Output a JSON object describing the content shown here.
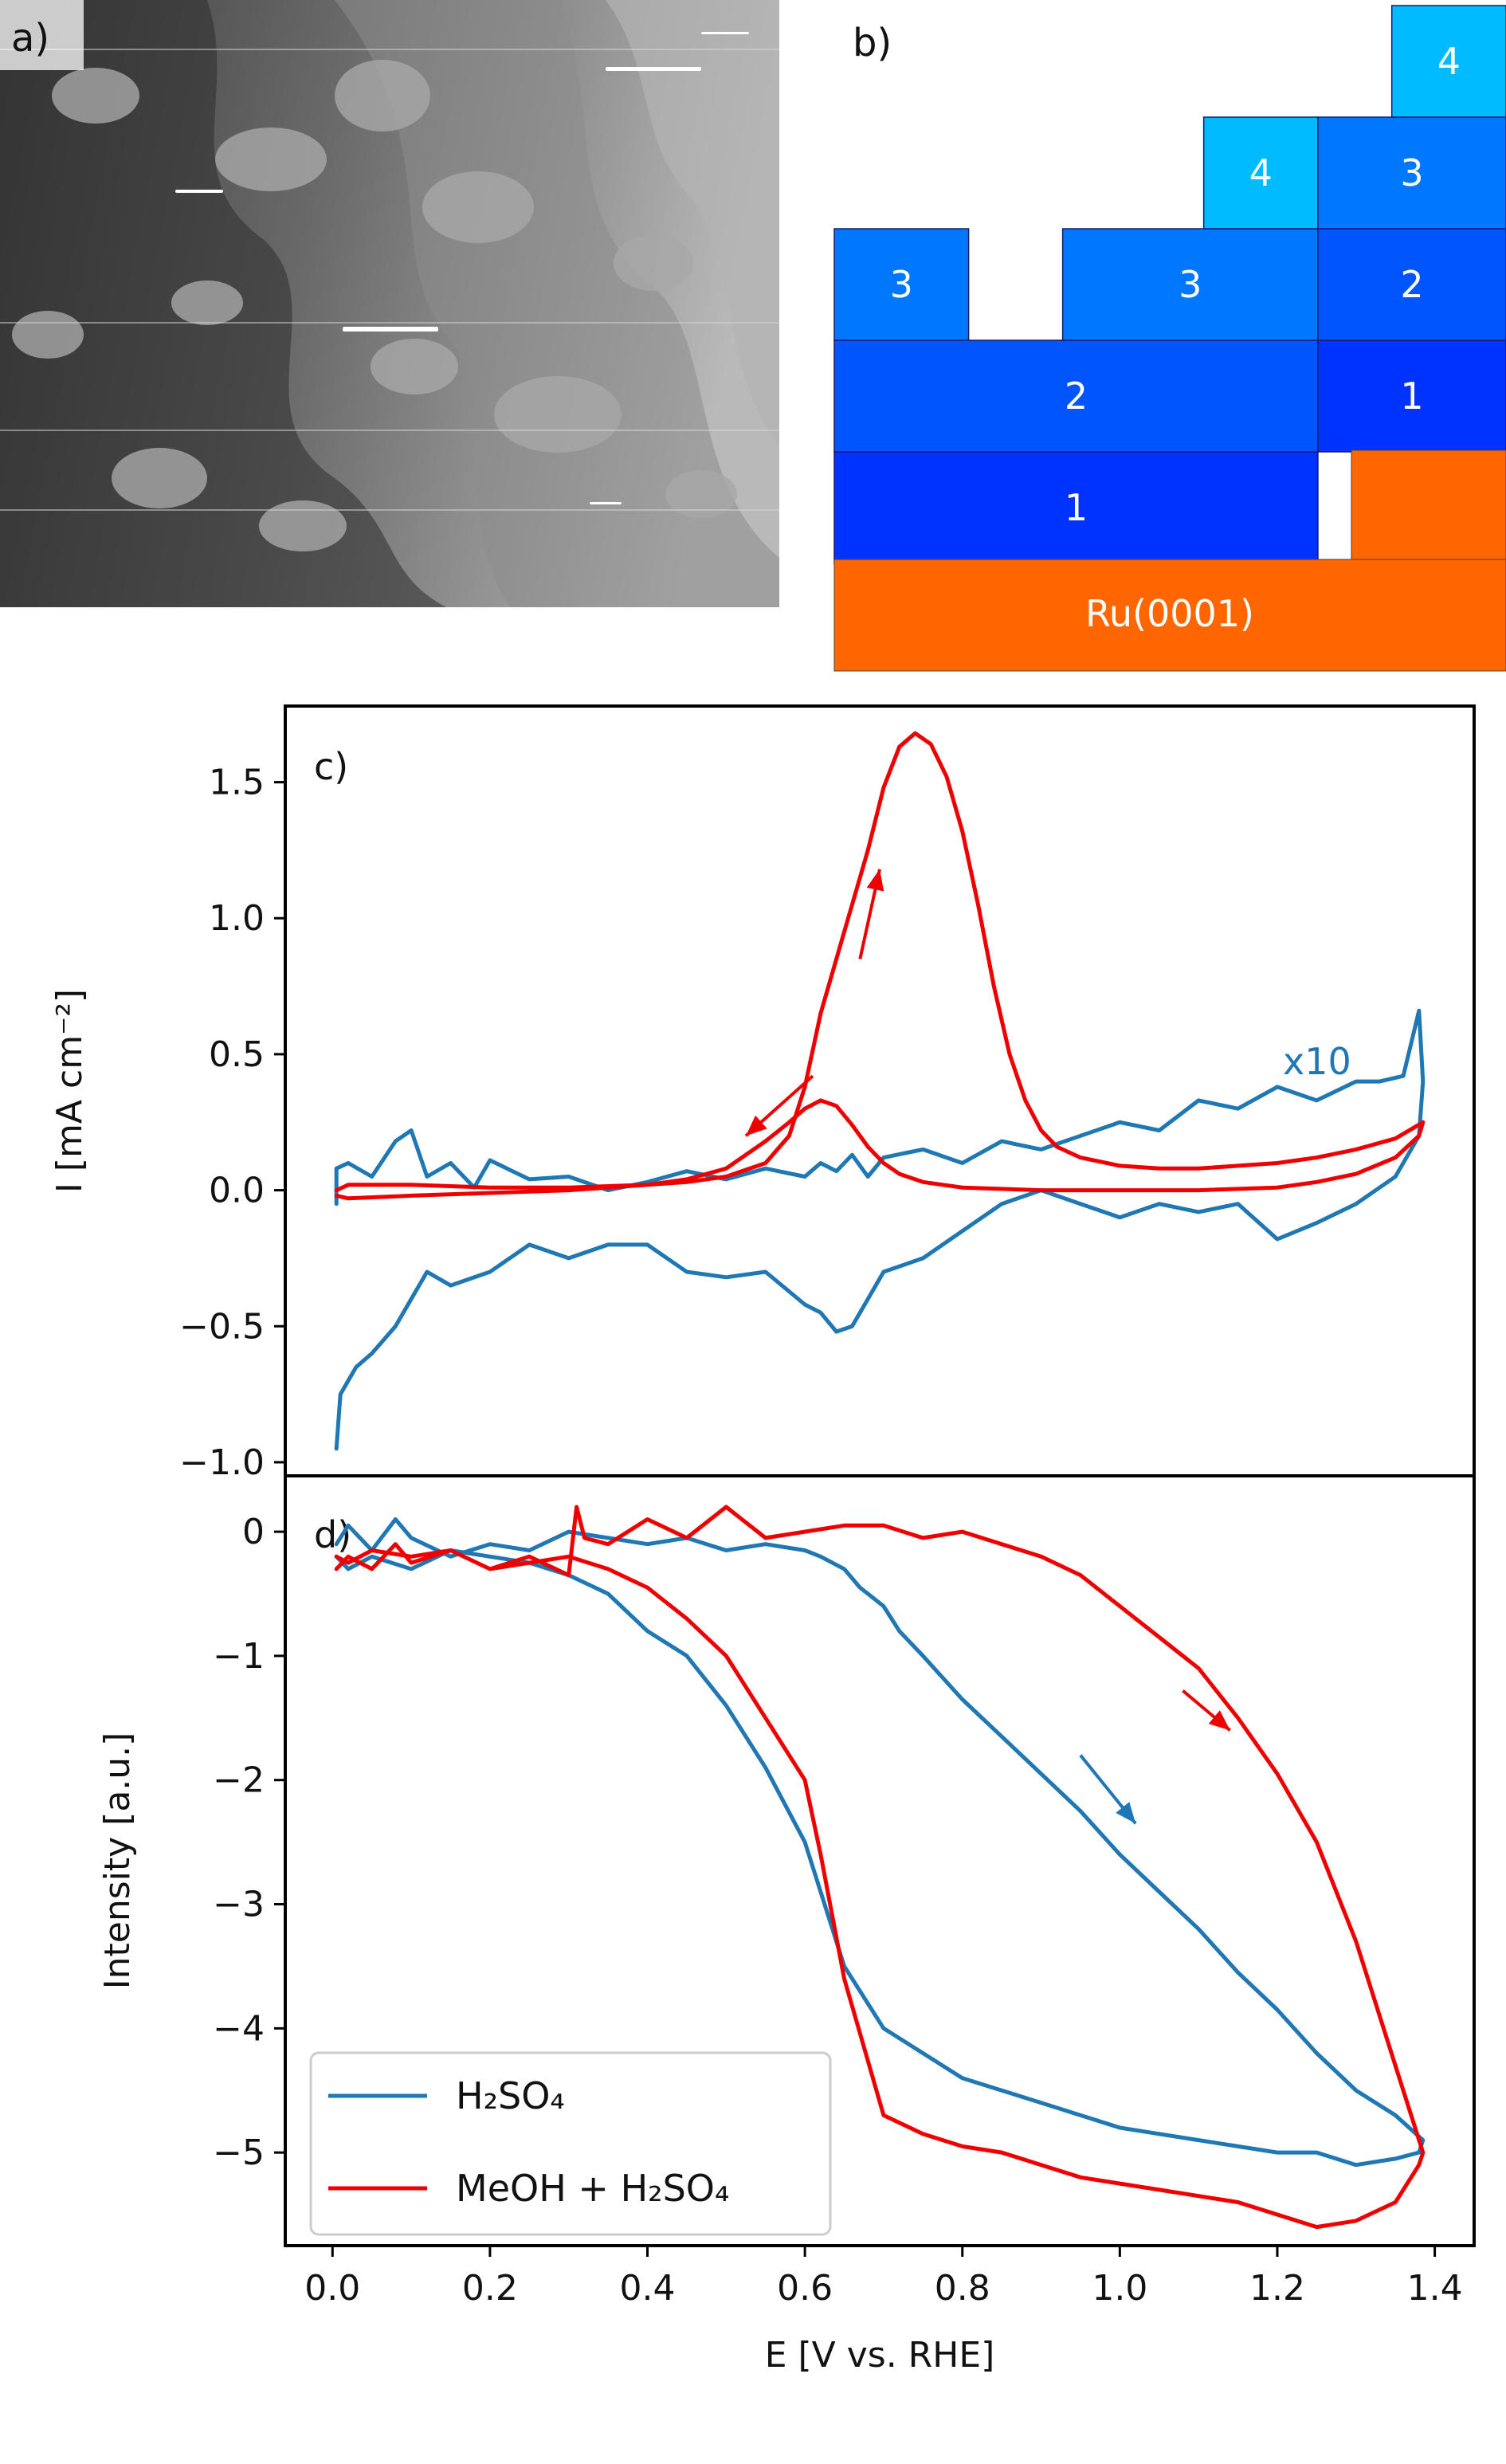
{
  "panel_a": {
    "label": "a)"
  },
  "panel_b": {
    "label": "b)",
    "substrate_label": "Ru(0001)",
    "colors": {
      "ru": "#ff6600",
      "layer1": "#0033ff",
      "layer2": "#0055ff",
      "layer3": "#0077ff",
      "layer4": "#00bbff"
    },
    "blocks": [
      {
        "layer": 1,
        "label": "1",
        "x0": 0.0,
        "x1": 0.72,
        "row": 1
      },
      {
        "layer": 2,
        "label": "2",
        "x0": 0.0,
        "x1": 0.72,
        "row": 2
      },
      {
        "layer": 3,
        "label": "3",
        "x0": 0.0,
        "x1": 0.2,
        "row": 3
      },
      {
        "layer": 3,
        "label": "3",
        "x0": 0.34,
        "x1": 0.72,
        "row": 3
      },
      {
        "layer": 4,
        "label": "4",
        "x0": 0.55,
        "x1": 0.72,
        "row": 4
      },
      {
        "layer": 1,
        "label": "1",
        "x0": 0.72,
        "x1": 1.0,
        "row": 2
      },
      {
        "layer": 2,
        "label": "2",
        "x0": 0.72,
        "x1": 1.0,
        "row": 3
      },
      {
        "layer": 3,
        "label": "3",
        "x0": 0.72,
        "x1": 1.0,
        "row": 4
      },
      {
        "layer": 4,
        "label": "4",
        "x0": 0.83,
        "x1": 1.0,
        "row": 5
      }
    ]
  },
  "chart_data": [
    {
      "panel_label": "c)",
      "type": "line",
      "title": "",
      "xlabel": "",
      "ylabel": "I [mA cm⁻²]",
      "xlim": [
        -0.06,
        1.45
      ],
      "ylim": [
        -1.05,
        1.78
      ],
      "yticks": [
        -1.0,
        -0.5,
        0.0,
        0.5,
        1.0,
        1.5
      ],
      "ytick_labels": [
        "−1.0",
        "−0.5",
        "0.0",
        "0.5",
        "1.0",
        "1.5"
      ],
      "annotation": "x10",
      "series": [
        {
          "key": "h2so4",
          "color": "#1f77b4",
          "x": [
            0.005,
            0.005,
            0.02,
            0.05,
            0.08,
            0.1,
            0.12,
            0.15,
            0.18,
            0.2,
            0.25,
            0.3,
            0.35,
            0.4,
            0.45,
            0.5,
            0.55,
            0.6,
            0.62,
            0.64,
            0.66,
            0.68,
            0.7,
            0.75,
            0.8,
            0.85,
            0.9,
            0.95,
            1.0,
            1.05,
            1.1,
            1.15,
            1.2,
            1.25,
            1.3,
            1.33,
            1.36,
            1.38,
            1.385,
            1.38,
            1.35,
            1.3,
            1.25,
            1.2,
            1.15,
            1.1,
            1.05,
            1.0,
            0.95,
            0.9,
            0.85,
            0.8,
            0.75,
            0.7,
            0.68,
            0.66,
            0.64,
            0.62,
            0.6,
            0.55,
            0.5,
            0.45,
            0.4,
            0.35,
            0.3,
            0.25,
            0.2,
            0.15,
            0.12,
            0.1,
            0.08,
            0.05,
            0.03,
            0.01,
            0.005
          ],
          "y": [
            -0.05,
            0.08,
            0.1,
            0.05,
            0.18,
            0.22,
            0.05,
            0.1,
            0.01,
            0.11,
            0.04,
            0.05,
            0.0,
            0.03,
            0.07,
            0.04,
            0.08,
            0.05,
            0.1,
            0.07,
            0.13,
            0.05,
            0.12,
            0.15,
            0.1,
            0.18,
            0.15,
            0.2,
            0.25,
            0.22,
            0.33,
            0.3,
            0.38,
            0.33,
            0.4,
            0.4,
            0.42,
            0.66,
            0.4,
            0.2,
            0.05,
            -0.05,
            -0.12,
            -0.18,
            -0.05,
            -0.08,
            -0.05,
            -0.1,
            -0.05,
            0.0,
            -0.05,
            -0.15,
            -0.25,
            -0.3,
            -0.4,
            -0.5,
            -0.52,
            -0.45,
            -0.42,
            -0.3,
            -0.32,
            -0.3,
            -0.2,
            -0.2,
            -0.25,
            -0.2,
            -0.3,
            -0.35,
            -0.3,
            -0.4,
            -0.5,
            -0.6,
            -0.65,
            -0.75,
            -0.95
          ]
        },
        {
          "key": "meoh",
          "color": "#ee0000",
          "x": [
            0.005,
            0.02,
            0.1,
            0.2,
            0.3,
            0.4,
            0.45,
            0.5,
            0.55,
            0.58,
            0.6,
            0.62,
            0.65,
            0.68,
            0.7,
            0.72,
            0.74,
            0.76,
            0.78,
            0.8,
            0.82,
            0.84,
            0.86,
            0.88,
            0.9,
            0.92,
            0.95,
            1.0,
            1.05,
            1.1,
            1.15,
            1.2,
            1.25,
            1.3,
            1.35,
            1.385,
            1.38,
            1.35,
            1.3,
            1.25,
            1.2,
            1.1,
            1.0,
            0.9,
            0.8,
            0.75,
            0.72,
            0.7,
            0.68,
            0.66,
            0.64,
            0.62,
            0.6,
            0.58,
            0.55,
            0.52,
            0.5,
            0.45,
            0.4,
            0.3,
            0.2,
            0.1,
            0.02,
            0.005
          ],
          "y": [
            0.0,
            0.02,
            0.02,
            0.01,
            0.01,
            0.02,
            0.03,
            0.05,
            0.1,
            0.2,
            0.38,
            0.65,
            0.95,
            1.25,
            1.48,
            1.63,
            1.68,
            1.64,
            1.52,
            1.32,
            1.05,
            0.75,
            0.5,
            0.33,
            0.22,
            0.16,
            0.12,
            0.09,
            0.08,
            0.08,
            0.09,
            0.1,
            0.12,
            0.15,
            0.19,
            0.25,
            0.2,
            0.12,
            0.06,
            0.03,
            0.01,
            0.0,
            0.0,
            0.0,
            0.01,
            0.03,
            0.06,
            0.1,
            0.16,
            0.24,
            0.31,
            0.33,
            0.3,
            0.25,
            0.18,
            0.12,
            0.08,
            0.04,
            0.02,
            0.0,
            -0.01,
            -0.02,
            -0.03,
            -0.02
          ]
        }
      ]
    },
    {
      "panel_label": "d)",
      "type": "line",
      "title": "",
      "xlabel": "E [V vs. RHE]",
      "ylabel": "Intensity [a.u.]",
      "xlim": [
        -0.06,
        1.45
      ],
      "ylim": [
        -5.75,
        0.45
      ],
      "xticks": [
        0.0,
        0.2,
        0.4,
        0.6,
        0.8,
        1.0,
        1.2,
        1.4
      ],
      "xtick_labels": [
        "0.0",
        "0.2",
        "0.4",
        "0.6",
        "0.8",
        "1.0",
        "1.2",
        "1.4"
      ],
      "yticks": [
        0,
        -1,
        -2,
        -3,
        -4,
        -5
      ],
      "ytick_labels": [
        "0",
        "−1",
        "−2",
        "−3",
        "−4",
        "−5"
      ],
      "legend_position": "bottom-left",
      "series": [
        {
          "key": "h2so4",
          "name": "H₂SO₄",
          "color": "#1f77b4",
          "x": [
            0.005,
            0.02,
            0.05,
            0.08,
            0.1,
            0.15,
            0.2,
            0.25,
            0.3,
            0.35,
            0.4,
            0.45,
            0.5,
            0.55,
            0.6,
            0.62,
            0.65,
            0.67,
            0.7,
            0.72,
            0.75,
            0.8,
            0.85,
            0.9,
            0.95,
            1.0,
            1.05,
            1.1,
            1.15,
            1.2,
            1.25,
            1.3,
            1.35,
            1.385,
            1.38,
            1.35,
            1.3,
            1.25,
            1.2,
            1.15,
            1.1,
            1.05,
            1.0,
            0.95,
            0.9,
            0.85,
            0.8,
            0.75,
            0.7,
            0.65,
            0.6,
            0.55,
            0.5,
            0.45,
            0.4,
            0.35,
            0.3,
            0.25,
            0.2,
            0.15,
            0.1,
            0.05,
            0.02,
            0.005
          ],
          "y": [
            -0.1,
            0.05,
            -0.15,
            0.1,
            -0.05,
            -0.2,
            -0.1,
            -0.15,
            0.0,
            -0.05,
            -0.1,
            -0.05,
            -0.15,
            -0.1,
            -0.15,
            -0.2,
            -0.3,
            -0.45,
            -0.6,
            -0.8,
            -1.0,
            -1.35,
            -1.65,
            -1.95,
            -2.25,
            -2.6,
            -2.9,
            -3.2,
            -3.55,
            -3.85,
            -4.2,
            -4.5,
            -4.7,
            -4.9,
            -5.0,
            -5.05,
            -5.1,
            -5.0,
            -5.0,
            -4.95,
            -4.9,
            -4.85,
            -4.8,
            -4.7,
            -4.6,
            -4.5,
            -4.4,
            -4.2,
            -4.0,
            -3.5,
            -2.5,
            -1.9,
            -1.4,
            -1.0,
            -0.8,
            -0.5,
            -0.35,
            -0.25,
            -0.2,
            -0.15,
            -0.3,
            -0.2,
            -0.3,
            -0.2
          ]
        },
        {
          "key": "meoh",
          "name": "MeOH + H₂SO₄",
          "color": "#ee0000",
          "x": [
            0.005,
            0.02,
            0.05,
            0.08,
            0.1,
            0.15,
            0.2,
            0.25,
            0.3,
            0.31,
            0.32,
            0.35,
            0.4,
            0.45,
            0.5,
            0.55,
            0.6,
            0.65,
            0.7,
            0.75,
            0.8,
            0.85,
            0.9,
            0.95,
            1.0,
            1.05,
            1.1,
            1.15,
            1.2,
            1.25,
            1.3,
            1.35,
            1.385,
            1.38,
            1.35,
            1.3,
            1.25,
            1.2,
            1.15,
            1.1,
            1.05,
            1.0,
            0.95,
            0.9,
            0.85,
            0.8,
            0.75,
            0.7,
            0.65,
            0.62,
            0.6,
            0.55,
            0.5,
            0.45,
            0.4,
            0.35,
            0.3,
            0.25,
            0.2,
            0.15,
            0.1,
            0.05,
            0.02,
            0.005
          ],
          "y": [
            -0.3,
            -0.2,
            -0.3,
            -0.1,
            -0.25,
            -0.15,
            -0.3,
            -0.2,
            -0.35,
            0.2,
            -0.05,
            -0.1,
            0.1,
            -0.05,
            0.2,
            -0.05,
            0.0,
            0.05,
            0.05,
            -0.05,
            0.0,
            -0.1,
            -0.2,
            -0.35,
            -0.6,
            -0.85,
            -1.1,
            -1.5,
            -1.95,
            -2.5,
            -3.3,
            -4.3,
            -5.0,
            -5.1,
            -5.4,
            -5.55,
            -5.6,
            -5.5,
            -5.4,
            -5.35,
            -5.3,
            -5.25,
            -5.2,
            -5.1,
            -5.0,
            -4.95,
            -4.85,
            -4.7,
            -3.6,
            -2.6,
            -2.0,
            -1.5,
            -1.0,
            -0.7,
            -0.45,
            -0.3,
            -0.2,
            -0.25,
            -0.3,
            -0.15,
            -0.2,
            -0.15,
            -0.25,
            -0.2
          ]
        }
      ]
    }
  ]
}
